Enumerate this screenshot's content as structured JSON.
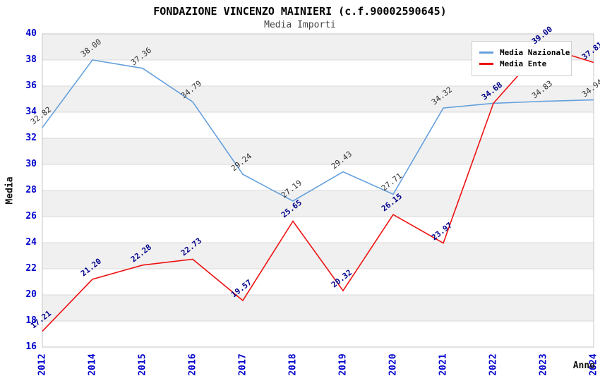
{
  "header": {
    "title": "FONDAZIONE VINCENZO MAINIERI (c.f.90002590645)",
    "subtitle": "Media Importi"
  },
  "axes": {
    "ylabel": "Media",
    "xlabel": "Anno",
    "yticks": [
      16,
      18,
      20,
      22,
      24,
      26,
      28,
      30,
      32,
      34,
      36,
      38,
      40
    ],
    "tick_color": "#0000cc"
  },
  "legend": {
    "position": "top-right",
    "items": [
      {
        "label": "Media Nazionale",
        "color": "#64a0dc"
      },
      {
        "label": "Media Ente",
        "color": "#ee1111"
      }
    ]
  },
  "chart_data": {
    "type": "line",
    "title": "FONDAZIONE VINCENZO MAINIERI (c.f.90002590645)",
    "subtitle": "Media Importi",
    "xlabel": "Anno",
    "ylabel": "Media",
    "ylim": [
      16,
      40
    ],
    "ytick_step": 2,
    "grid": true,
    "legend_position": "top-right",
    "categories": [
      "2012",
      "2014",
      "2015",
      "2016",
      "2017",
      "2018",
      "2019",
      "2020",
      "2021",
      "2022",
      "2023",
      "2024"
    ],
    "series": [
      {
        "name": "Media Nazionale",
        "color": "#64a0dc",
        "label_color": "#333333",
        "values": [
          32.82,
          38.0,
          37.36,
          34.79,
          29.24,
          27.19,
          29.43,
          27.71,
          34.32,
          34.68,
          34.83,
          34.94
        ]
      },
      {
        "name": "Media Ente",
        "color": "#ee1111",
        "label_color": "#00008b",
        "values": [
          17.21,
          21.2,
          22.28,
          22.73,
          19.57,
          25.65,
          20.32,
          26.15,
          23.97,
          34.68,
          39.0,
          37.81
        ]
      }
    ],
    "band_color": "#f0f0f0",
    "gridline_color": "#d8d8d8",
    "border_color": "#c4c4c4"
  }
}
